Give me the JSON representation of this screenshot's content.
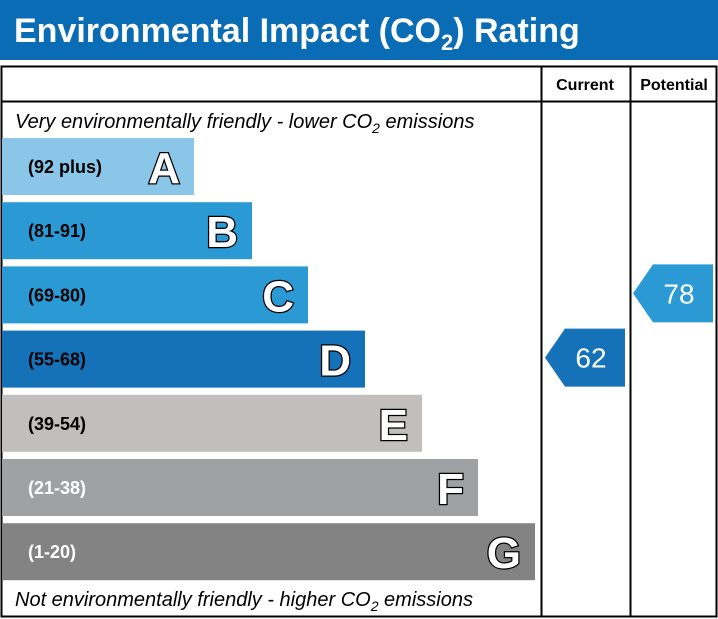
{
  "title_prefix": "Environmental Impact (CO",
  "title_sub": "2",
  "title_suffix": ") Rating",
  "header_color": "#0a6cb4",
  "columns": {
    "current": "Current",
    "potential": "Potential"
  },
  "top_note": {
    "prefix": "Very environmentally friendly - lower CO",
    "sub": "2",
    "suffix": " emissions"
  },
  "bottom_note": {
    "prefix": "Not environmentally friendly - higher CO",
    "sub": "2",
    "suffix": " emissions"
  },
  "chart_data": {
    "type": "bar",
    "bands": [
      {
        "letter": "A",
        "range": "(92 plus)",
        "color": "#8ac6e8"
      },
      {
        "letter": "B",
        "range": "(81-91)",
        "color": "#2b9ad4"
      },
      {
        "letter": "C",
        "range": "(69-80)",
        "color": "#2b9ad4"
      },
      {
        "letter": "D",
        "range": "(55-68)",
        "color": "#1572b8"
      },
      {
        "letter": "E",
        "range": "(39-54)",
        "color": "#c0bfbd"
      },
      {
        "letter": "F",
        "range": "(21-38)",
        "color": "#a0a1a3"
      },
      {
        "letter": "G",
        "range": "(1-20)",
        "color": "#838383"
      }
    ],
    "current": {
      "value": "62",
      "band": "D",
      "color": "#1572b8"
    },
    "potential": {
      "value": "78",
      "band": "C",
      "color": "#2b9ad4"
    }
  }
}
